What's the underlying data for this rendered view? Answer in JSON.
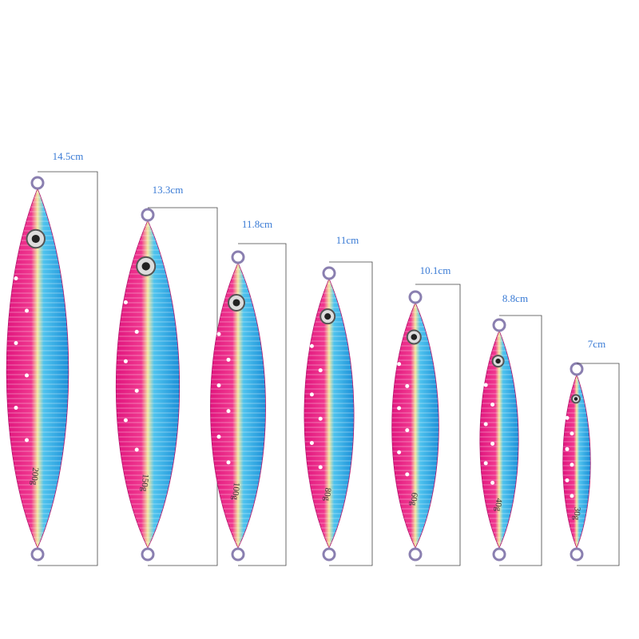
{
  "lures": [
    {
      "length": "14.5cm",
      "weight": "200g"
    },
    {
      "length": "13.3cm",
      "weight": "150g"
    },
    {
      "length": "11.8cm",
      "weight": "100g"
    },
    {
      "length": "11cm",
      "weight": "80g"
    },
    {
      "length": "10.1cm",
      "weight": "60g"
    },
    {
      "length": "8.8cm",
      "weight": "40g"
    },
    {
      "length": "7cm",
      "weight": "30g"
    }
  ]
}
